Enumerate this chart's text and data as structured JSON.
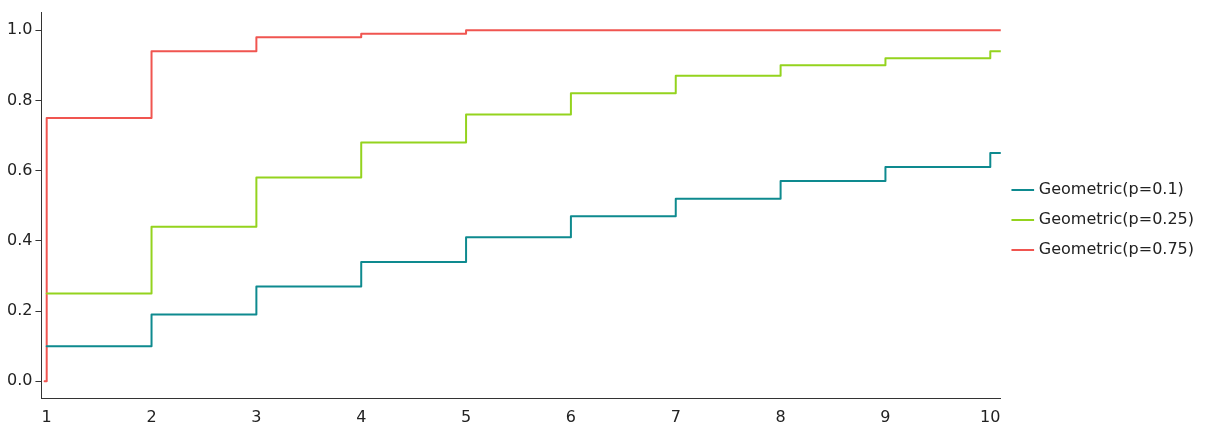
{
  "chart_data": {
    "type": "step",
    "xlim": [
      0.95,
      10.1
    ],
    "xticks": [
      1,
      2,
      3,
      4,
      5,
      6,
      7,
      8,
      9,
      10
    ],
    "ylim": [
      -0.05,
      1.05
    ],
    "yticks": [
      {
        "value": 0,
        "label": "0.0"
      },
      {
        "value": 0.2,
        "label": "0.2"
      },
      {
        "value": 0.4,
        "label": "0.4"
      },
      {
        "value": 0.6,
        "label": "0.6"
      },
      {
        "value": 0.8,
        "label": "0.8"
      },
      {
        "value": 1,
        "label": "1.0"
      }
    ],
    "grid": false,
    "legend": "right",
    "marker": "none",
    "line_style": "solid",
    "series": [
      {
        "name": "Geometric(p=0.1)",
        "color": "#0e8a8f",
        "x": [
          1,
          2,
          3,
          4,
          5,
          6,
          7,
          8,
          9,
          10,
          10.1
        ],
        "values": [
          0.1,
          0.19,
          0.27,
          0.34,
          0.41,
          0.47,
          0.52,
          0.57,
          0.61,
          0.65,
          0.65
        ]
      },
      {
        "name": "Geometric(p=0.25)",
        "color": "#94d31e",
        "x": [
          1,
          2,
          3,
          4,
          5,
          6,
          7,
          8,
          9,
          10,
          10.1
        ],
        "values": [
          0.25,
          0.44,
          0.58,
          0.68,
          0.76,
          0.82,
          0.87,
          0.9,
          0.92,
          0.94,
          0.94
        ]
      },
      {
        "name": "Geometric(p=0.75)",
        "color": "#f05550",
        "x": [
          0.98,
          1,
          2,
          3,
          4,
          5,
          6,
          7,
          8,
          9,
          10,
          10.1
        ],
        "values": [
          0,
          0.75,
          0.94,
          0.98,
          0.99,
          1.0,
          1.0,
          1.0,
          1.0,
          1.0,
          1.0,
          1.0
        ]
      }
    ]
  }
}
